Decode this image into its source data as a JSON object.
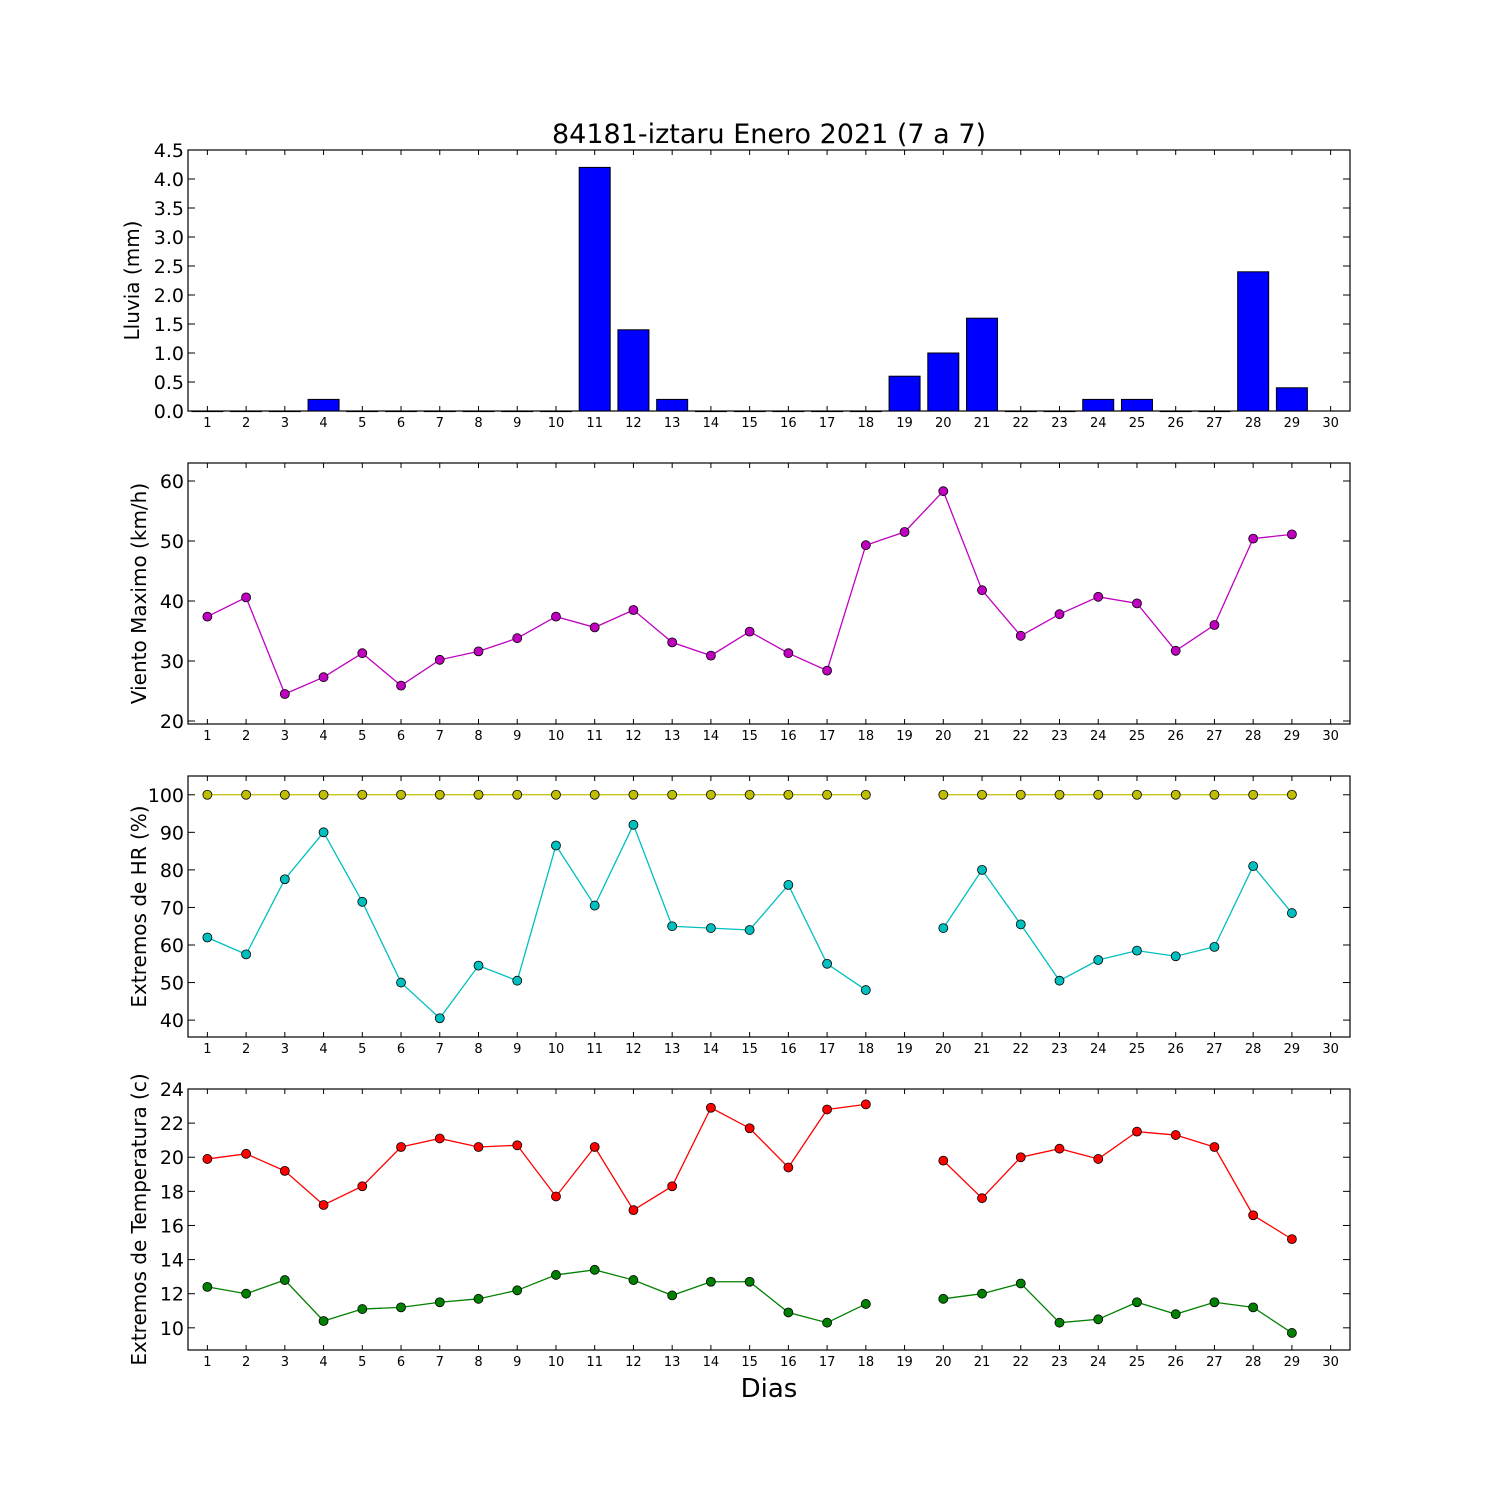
{
  "title": "84181-iztaru Enero 2021  (7 a 7)",
  "xlabel": "Dias",
  "chart_data": [
    {
      "type": "bar",
      "ylabel": "Lluvia (mm)",
      "x": [
        1,
        2,
        3,
        4,
        5,
        6,
        7,
        8,
        9,
        10,
        11,
        12,
        13,
        14,
        15,
        16,
        17,
        18,
        19,
        20,
        21,
        22,
        23,
        24,
        25,
        26,
        27,
        28,
        29
      ],
      "values": [
        0,
        0,
        0,
        0.2,
        0,
        0,
        0,
        0,
        0,
        0,
        4.2,
        1.4,
        0.2,
        0,
        0,
        0,
        0,
        0,
        0.6,
        1.0,
        1.6,
        0,
        0,
        0.2,
        0.2,
        0,
        0,
        2.4,
        0.4
      ],
      "color": "#0000ff",
      "xlim": [
        0.5,
        30.5
      ],
      "ylim": [
        0,
        4.5
      ],
      "xticks": [
        1,
        2,
        3,
        4,
        5,
        6,
        7,
        8,
        9,
        10,
        11,
        12,
        13,
        14,
        15,
        16,
        17,
        18,
        19,
        20,
        21,
        22,
        23,
        24,
        25,
        26,
        27,
        28,
        29,
        30
      ],
      "yticks": [
        "0.0",
        "0.5",
        "1.0",
        "1.5",
        "2.0",
        "2.5",
        "3.0",
        "3.5",
        "4.0",
        "4.5"
      ]
    },
    {
      "type": "line",
      "ylabel": "Viento Maximo (km/h)",
      "x": [
        1,
        2,
        3,
        4,
        5,
        6,
        7,
        8,
        9,
        10,
        11,
        12,
        13,
        14,
        15,
        16,
        17,
        18,
        19,
        20,
        21,
        22,
        23,
        24,
        25,
        26,
        27,
        28,
        29
      ],
      "series": [
        {
          "color": "#bf00bf",
          "values": [
            37.4,
            40.6,
            24.5,
            27.3,
            31.3,
            25.9,
            30.2,
            31.6,
            33.8,
            37.4,
            35.6,
            38.5,
            33.1,
            30.9,
            34.9,
            31.3,
            28.4,
            49.3,
            51.5,
            58.3,
            41.8,
            34.2,
            37.8,
            40.7,
            39.6,
            31.7,
            36.0,
            50.4,
            51.1
          ]
        }
      ],
      "xlim": [
        0.5,
        30.5
      ],
      "ylim": [
        19.5,
        63
      ],
      "xticks": [
        1,
        2,
        3,
        4,
        5,
        6,
        7,
        8,
        9,
        10,
        11,
        12,
        13,
        14,
        15,
        16,
        17,
        18,
        19,
        20,
        21,
        22,
        23,
        24,
        25,
        26,
        27,
        28,
        29,
        30
      ],
      "yticks": [
        "20",
        "30",
        "40",
        "50",
        "60"
      ]
    },
    {
      "type": "line",
      "ylabel": "Extremos de HR (%)",
      "x": [
        1,
        2,
        3,
        4,
        5,
        6,
        7,
        8,
        9,
        10,
        11,
        12,
        13,
        14,
        15,
        16,
        17,
        18,
        19,
        20,
        21,
        22,
        23,
        24,
        25,
        26,
        27,
        28,
        29
      ],
      "series": [
        {
          "color": "#bfbf00",
          "values": [
            100,
            100,
            100,
            100,
            100,
            100,
            100,
            100,
            100,
            100,
            100,
            100,
            100,
            100,
            100,
            100,
            100,
            100,
            null,
            100,
            100,
            100,
            100,
            100,
            100,
            100,
            100,
            100,
            100
          ]
        },
        {
          "color": "#00bfbf",
          "values": [
            62,
            57.5,
            77.5,
            90,
            71.5,
            50,
            40.5,
            54.5,
            50.5,
            86.5,
            70.5,
            92,
            65,
            64.5,
            64,
            76,
            55,
            48,
            null,
            64.5,
            80,
            65.5,
            50.5,
            56,
            58.5,
            57,
            59.5,
            81,
            68.5
          ]
        }
      ],
      "xlim": [
        0.5,
        30.5
      ],
      "ylim": [
        35.5,
        105
      ],
      "xticks": [
        1,
        2,
        3,
        4,
        5,
        6,
        7,
        8,
        9,
        10,
        11,
        12,
        13,
        14,
        15,
        16,
        17,
        18,
        19,
        20,
        21,
        22,
        23,
        24,
        25,
        26,
        27,
        28,
        29,
        30
      ],
      "yticks": [
        "40",
        "50",
        "60",
        "70",
        "80",
        "90",
        "100"
      ]
    },
    {
      "type": "line",
      "ylabel": "Extremos de Temperatura (c)",
      "x": [
        1,
        2,
        3,
        4,
        5,
        6,
        7,
        8,
        9,
        10,
        11,
        12,
        13,
        14,
        15,
        16,
        17,
        18,
        19,
        20,
        21,
        22,
        23,
        24,
        25,
        26,
        27,
        28,
        29
      ],
      "series": [
        {
          "color": "#ff0000",
          "values": [
            19.9,
            20.2,
            19.2,
            17.2,
            18.3,
            20.6,
            21.1,
            20.6,
            20.7,
            17.7,
            20.6,
            16.9,
            18.3,
            22.9,
            21.7,
            19.4,
            22.8,
            23.1,
            null,
            19.8,
            17.6,
            20.0,
            20.5,
            19.9,
            21.5,
            21.3,
            20.6,
            16.6,
            15.2
          ]
        },
        {
          "color": "#008000",
          "values": [
            12.4,
            12.0,
            12.8,
            10.4,
            11.1,
            11.2,
            11.5,
            11.7,
            12.2,
            13.1,
            13.4,
            12.8,
            11.9,
            12.7,
            12.7,
            10.9,
            10.3,
            11.4,
            null,
            11.7,
            12.0,
            12.6,
            10.3,
            10.5,
            11.5,
            10.8,
            11.5,
            11.2,
            9.7
          ]
        }
      ],
      "xlim": [
        0.5,
        30.5
      ],
      "ylim": [
        8.7,
        24
      ],
      "xticks": [
        1,
        2,
        3,
        4,
        5,
        6,
        7,
        8,
        9,
        10,
        11,
        12,
        13,
        14,
        15,
        16,
        17,
        18,
        19,
        20,
        21,
        22,
        23,
        24,
        25,
        26,
        27,
        28,
        29,
        30
      ],
      "yticks": [
        "10",
        "12",
        "14",
        "16",
        "18",
        "20",
        "22",
        "24"
      ]
    }
  ]
}
